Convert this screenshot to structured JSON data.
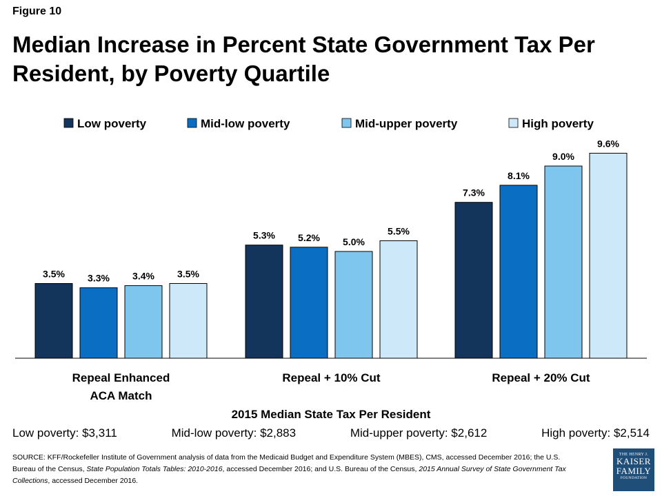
{
  "figure_label": "Figure 10",
  "colors": {
    "Low poverty": "#13355b",
    "Mid-low poverty": "#0a6fc2",
    "Mid-upper poverty": "#7fc6ee",
    "High poverty": "#cde8f8"
  },
  "chart_data": {
    "type": "bar",
    "title": "Median Increase in Percent State Government Tax Per Resident, by Poverty Quartile",
    "categories": [
      [
        "Repeal Enhanced",
        "ACA Match"
      ],
      [
        "Repeal + 10% Cut"
      ],
      [
        "Repeal + 20% Cut"
      ]
    ],
    "series": [
      {
        "name": "Low poverty",
        "values": [
          3.5,
          5.3,
          7.3
        ],
        "labels": [
          "3.5%",
          "5.3%",
          "7.3%"
        ]
      },
      {
        "name": "Mid-low poverty",
        "values": [
          3.3,
          5.2,
          8.1
        ],
        "labels": [
          "3.3%",
          "5.2%",
          "8.1%"
        ]
      },
      {
        "name": "Mid-upper poverty",
        "values": [
          3.4,
          5.0,
          9.0
        ],
        "labels": [
          "3.4%",
          "5.0%",
          "9.0%"
        ]
      },
      {
        "name": "High poverty",
        "values": [
          3.5,
          5.5,
          9.6
        ],
        "labels": [
          "3.5%",
          "5.5%",
          "9.6%"
        ]
      }
    ],
    "ylim": [
      0,
      10
    ],
    "legend": "top",
    "grid": false,
    "xlabel": "",
    "ylabel": ""
  },
  "summary": {
    "title": "2015 Median State Tax Per Resident",
    "items": [
      "Low poverty: $3,311",
      "Mid-low poverty: $2,883",
      "Mid-upper poverty: $2,612",
      "High poverty: $2,514"
    ]
  },
  "source": {
    "part1": "SOURCE:  KFF/Rockefeller Institute of Government  analysis of data from the  Medicaid Budget and Expenditure System (MBES), CMS, accessed December 2016; the U.S. Bureau of the Census, ",
    "italic1": "State Population Totals Tables: 2010-2016",
    "part2": ", accessed December  2016; and U.S. Bureau of the Census, ",
    "italic2": "2015 Annual Survey of State Government Tax Collections",
    "part3": ", accessed December  2016."
  },
  "logo": {
    "line1": "THE HENRY J.",
    "line2": "KAISER",
    "line3": "FAMILY",
    "line4": "FOUNDATION"
  }
}
